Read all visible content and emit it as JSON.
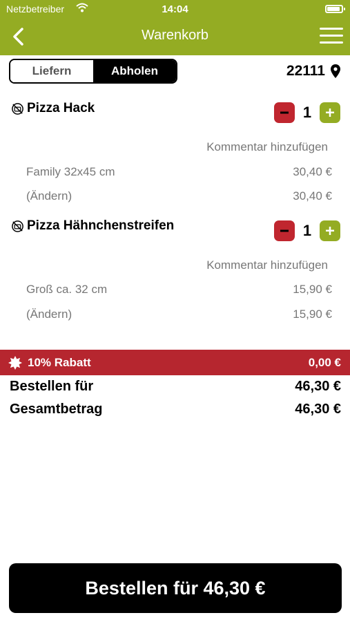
{
  "status_bar": {
    "carrier": "Netzbetreiber",
    "time": "14:04"
  },
  "nav": {
    "title": "Warenkorb",
    "back_icon": "chevron-left-icon",
    "menu_icon": "hamburger-menu-icon"
  },
  "mode_toggle": {
    "options": [
      "Liefern",
      "Abholen"
    ],
    "selected": "Abholen"
  },
  "location": {
    "postcode": "22111",
    "icon": "map-pin-icon"
  },
  "cart": {
    "items": [
      {
        "name": "Pizza Hack",
        "quantity": "1",
        "comment_label": "Kommentar hinzufügen",
        "lines": [
          {
            "label": "Family 32x45 cm",
            "price": "30,40 €"
          },
          {
            "label": "(Ändern)",
            "price": "30,40 €"
          }
        ]
      },
      {
        "name": "Pizza Hähnchenstreifen",
        "quantity": "1",
        "comment_label": "Kommentar hinzufügen",
        "lines": [
          {
            "label": "Groß ca. 32 cm",
            "price": "15,90 €"
          },
          {
            "label": "(Ändern)",
            "price": "15,90 €"
          }
        ]
      }
    ]
  },
  "discount": {
    "label": "10% Rabatt",
    "amount": "0,00 €"
  },
  "summary": {
    "order_for_label": "Bestellen für",
    "order_for_value": "46,30 €",
    "total_label": "Gesamtbetrag",
    "total_value": "46,30 €"
  },
  "order_button": {
    "label": "Bestellen für 46,30 €"
  },
  "colors": {
    "brand_green": "#94ac23",
    "discount_red": "#b6262f",
    "minus_red": "#c0262f"
  }
}
